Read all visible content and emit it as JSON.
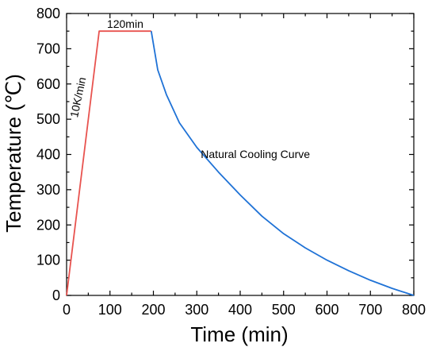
{
  "chart_data": {
    "type": "line",
    "xlabel": "Time (min)",
    "ylabel": "Temperature (℃)",
    "xlim": [
      0,
      800
    ],
    "ylim": [
      0,
      800
    ],
    "x_ticks": [
      "0",
      "100",
      "200",
      "300",
      "400",
      "500",
      "600",
      "700",
      "800"
    ],
    "y_ticks": [
      "0",
      "100",
      "200",
      "300",
      "400",
      "500",
      "600",
      "700",
      "800"
    ],
    "grid": false,
    "legend": "none",
    "series": [
      {
        "color": "#e8534f",
        "x": [
          0,
          75,
          195
        ],
        "y": [
          0,
          750,
          750
        ]
      },
      {
        "color": "#1f72d6",
        "x": [
          195,
          210,
          230,
          260,
          300,
          350,
          400,
          450,
          500,
          550,
          600,
          650,
          700,
          750,
          800
        ],
        "y": [
          750,
          640,
          570,
          490,
          420,
          350,
          285,
          225,
          175,
          135,
          100,
          70,
          43,
          20,
          0
        ]
      }
    ],
    "annotations": [
      {
        "text": "120min",
        "x": 135,
        "y": 760
      },
      {
        "text": "10K/min",
        "x": 35,
        "y": 560
      },
      {
        "text": "Natural Cooling Curve",
        "x": 435,
        "y": 390
      }
    ]
  }
}
